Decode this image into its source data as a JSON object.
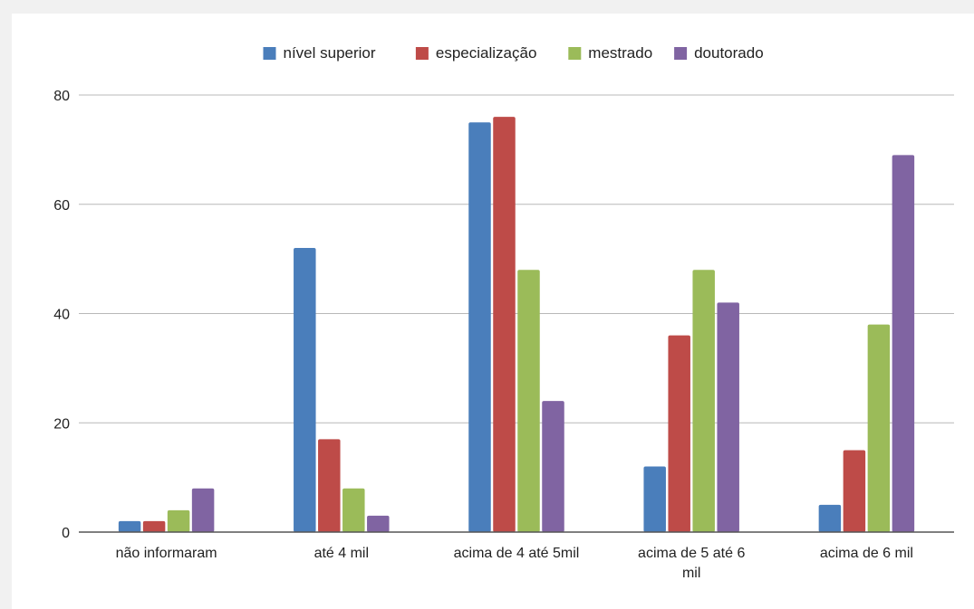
{
  "chart_data": {
    "type": "bar",
    "categories": [
      [
        "não informaram"
      ],
      [
        "até 4 mil"
      ],
      [
        "acima de 4 até 5mil"
      ],
      [
        "acima de 5 até 6",
        "mil"
      ],
      [
        "acima de 6 mil"
      ]
    ],
    "series": [
      {
        "name": "nível superior",
        "color": "#4a7ebb",
        "values": [
          2,
          52,
          75,
          12,
          5
        ]
      },
      {
        "name": "especialização",
        "color": "#be4b48",
        "values": [
          2,
          17,
          76,
          36,
          15
        ]
      },
      {
        "name": "mestrado",
        "color": "#9bbb59",
        "values": [
          4,
          8,
          48,
          48,
          38
        ]
      },
      {
        "name": "doutorado",
        "color": "#8064a2",
        "values": [
          8,
          3,
          24,
          42,
          69
        ]
      }
    ],
    "ylim": [
      0,
      80
    ],
    "yticks": [
      0,
      20,
      40,
      60,
      80
    ],
    "grid": true,
    "legend_position": "top"
  }
}
